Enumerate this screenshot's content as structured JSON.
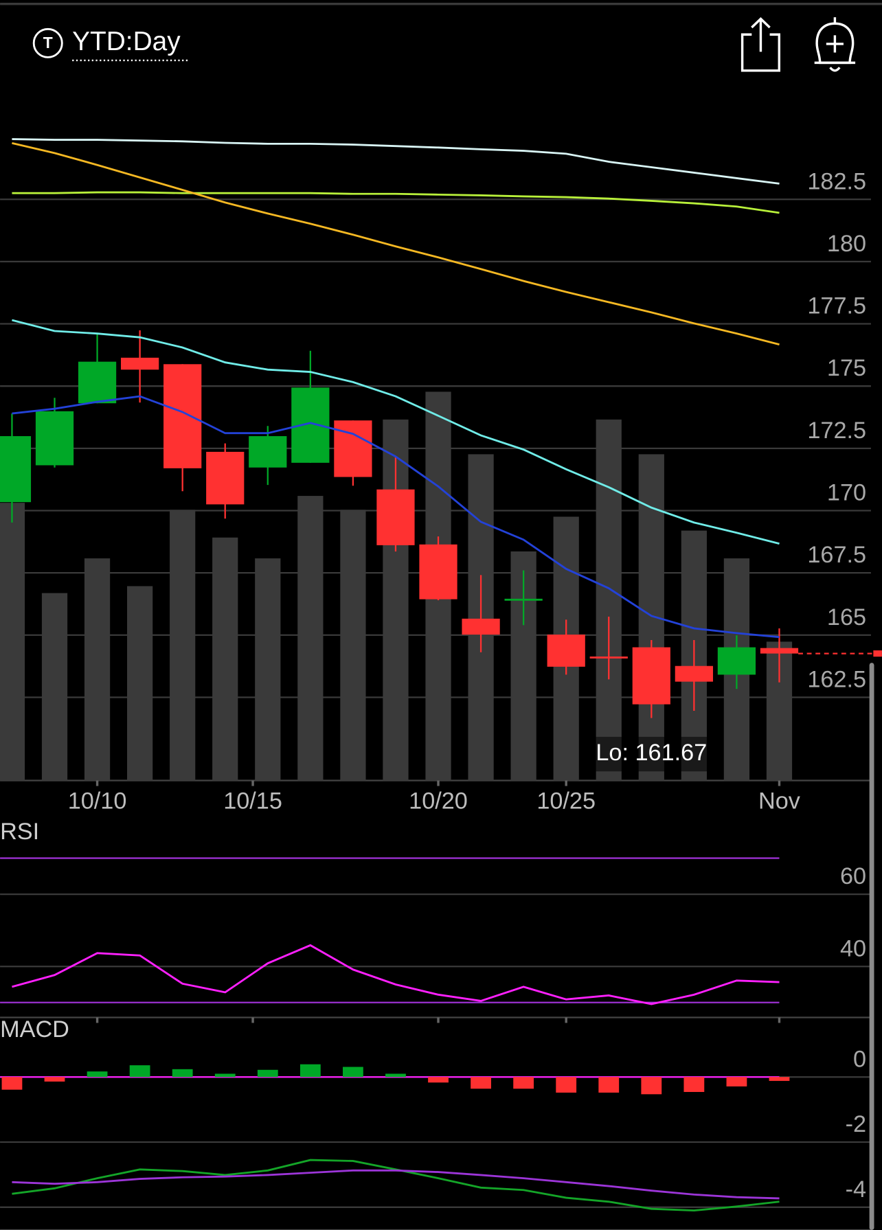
{
  "header": {
    "icon_letter": "T",
    "title": "YTD:Day"
  },
  "chart_data": [
    {
      "type": "candlestick",
      "x": [
        0,
        1,
        2,
        3,
        4,
        5,
        6,
        7,
        8,
        9,
        10,
        11,
        12,
        13,
        14,
        15,
        16,
        17,
        18
      ],
      "xlim": [
        -0.28,
        18.31
      ],
      "xticks": [
        {
          "value": 2,
          "label": "10/10"
        },
        {
          "value": 5.65,
          "label": "10/15"
        },
        {
          "value": 10,
          "label": "10/20"
        },
        {
          "value": 13,
          "label": "10/25"
        },
        {
          "value": 18,
          "label": "Nov"
        }
      ],
      "ylim": [
        159.16,
        187.04
      ],
      "yticks": [
        162.5,
        165,
        167.5,
        170,
        172.5,
        175,
        177.5,
        180,
        182.5
      ],
      "grid": true,
      "open": [
        170.34,
        171.82,
        174.31,
        176.14,
        175.88,
        172.36,
        171.73,
        171.92,
        173.62,
        170.85,
        168.64,
        165.66,
        166.44,
        165.02,
        164.14,
        164.51,
        163.76,
        163.41,
        164.48
      ],
      "high": [
        173.9,
        174.53,
        177.08,
        177.24,
        175.88,
        172.7,
        173.4,
        176.42,
        173.62,
        172.17,
        168.96,
        167.41,
        167.6,
        165.62,
        165.74,
        164.8,
        164.8,
        164.99,
        165.27
      ],
      "low": [
        169.52,
        171.73,
        174.31,
        174.34,
        170.78,
        169.68,
        171.03,
        171.92,
        171.0,
        168.36,
        166.4,
        164.31,
        165.4,
        163.41,
        163.22,
        161.67,
        161.96,
        162.84,
        163.1
      ],
      "close": [
        172.99,
        173.99,
        175.98,
        175.66,
        171.7,
        170.25,
        172.99,
        174.94,
        171.35,
        168.61,
        166.44,
        165.02,
        166.46,
        163.73,
        164.12,
        162.22,
        163.13,
        164.51,
        164.26
      ],
      "up_color": "#00a827",
      "down_color": "#ff3131",
      "volume": {
        "color": "#3a3a3a",
        "ylim": [
          0,
          100
        ],
        "values": [
          40,
          27,
          32,
          28,
          39,
          35,
          32,
          41,
          39,
          52,
          56,
          47,
          33,
          38,
          52,
          47,
          36,
          32,
          20
        ]
      },
      "series": [
        {
          "color": "#d8f4f4",
          "values": [
            184.92,
            184.89,
            184.89,
            184.86,
            184.83,
            184.77,
            184.73,
            184.73,
            184.7,
            184.64,
            184.58,
            184.51,
            184.45,
            184.33,
            184.01,
            183.79,
            183.57,
            183.35,
            183.13
          ]
        },
        {
          "color": "#b8f03a",
          "values": [
            182.75,
            182.75,
            182.78,
            182.78,
            182.75,
            182.75,
            182.75,
            182.75,
            182.72,
            182.72,
            182.69,
            182.66,
            182.62,
            182.59,
            182.53,
            182.44,
            182.34,
            182.21,
            181.96
          ]
        },
        {
          "color": "#f5b823",
          "values": [
            184.76,
            184.36,
            183.88,
            183.38,
            182.88,
            182.37,
            181.93,
            181.52,
            181.08,
            180.61,
            180.17,
            179.7,
            179.22,
            178.78,
            178.37,
            177.96,
            177.52,
            177.11,
            176.67
          ]
        },
        {
          "color": "#70ece8",
          "values": [
            177.65,
            177.21,
            177.11,
            176.96,
            176.55,
            175.95,
            175.66,
            175.57,
            175.16,
            174.59,
            173.81,
            173.02,
            172.45,
            171.66,
            170.94,
            170.12,
            169.52,
            169.11,
            168.67
          ]
        },
        {
          "color": "#2342d8",
          "values": [
            173.9,
            174.09,
            174.37,
            174.59,
            173.96,
            173.11,
            173.11,
            173.52,
            173.08,
            172.17,
            170.97,
            169.55,
            168.83,
            167.66,
            166.88,
            165.77,
            165.27,
            165.08,
            164.92
          ]
        }
      ],
      "annotations": [
        {
          "text": "Lo: 161.67"
        }
      ]
    },
    {
      "type": "line",
      "title": "RSI",
      "x": [
        0,
        1,
        2,
        3,
        4,
        5,
        6,
        7,
        8,
        9,
        10,
        11,
        12,
        13,
        14,
        15,
        16,
        17,
        18
      ],
      "xlim": [
        -0.28,
        18.31
      ],
      "ylim": [
        25.87,
        80.65
      ],
      "yticks": [
        40,
        60
      ],
      "grid": true,
      "reference_lines": [
        70,
        30
      ],
      "reference_color": "#9b30d0",
      "series": [
        {
          "color": "#ff20ff",
          "values": [
            34.35,
            37.61,
            43.7,
            43.04,
            35.22,
            32.83,
            40.87,
            45.87,
            39.13,
            35.0,
            32.17,
            30.43,
            34.35,
            30.87,
            31.96,
            29.57,
            32.17,
            36.09,
            35.65
          ]
        }
      ]
    },
    {
      "type": "macd",
      "title": "MACD",
      "x": [
        0,
        1,
        2,
        3,
        4,
        5,
        6,
        7,
        8,
        9,
        10,
        11,
        12,
        13,
        14,
        15,
        16,
        17,
        18
      ],
      "xlim": [
        -0.28,
        18.31
      ],
      "ylim": [
        -4.7,
        1.83
      ],
      "yticks": [
        -4,
        -2,
        0
      ],
      "grid": true,
      "reference_lines": [
        0
      ],
      "reference_color": "#ff20ff",
      "histogram": {
        "up_color": "#00a827",
        "down_color": "#ff3131",
        "values": [
          -0.39,
          -0.14,
          0.17,
          0.36,
          0.24,
          0.1,
          0.22,
          0.39,
          0.31,
          0.1,
          -0.17,
          -0.36,
          -0.36,
          -0.48,
          -0.48,
          -0.53,
          -0.46,
          -0.29,
          -0.12
        ]
      },
      "series": [
        {
          "color": "#14a528",
          "values": [
            -3.59,
            -3.42,
            -3.11,
            -2.84,
            -2.89,
            -3.01,
            -2.87,
            -2.55,
            -2.58,
            -2.84,
            -3.11,
            -3.4,
            -3.47,
            -3.71,
            -3.83,
            -4.05,
            -4.1,
            -3.98,
            -3.83
          ]
        },
        {
          "color": "#9c35d8",
          "values": [
            -3.23,
            -3.28,
            -3.23,
            -3.13,
            -3.08,
            -3.06,
            -3.01,
            -2.94,
            -2.87,
            -2.87,
            -2.92,
            -3.01,
            -3.11,
            -3.23,
            -3.35,
            -3.49,
            -3.61,
            -3.69,
            -3.73
          ]
        }
      ]
    }
  ]
}
